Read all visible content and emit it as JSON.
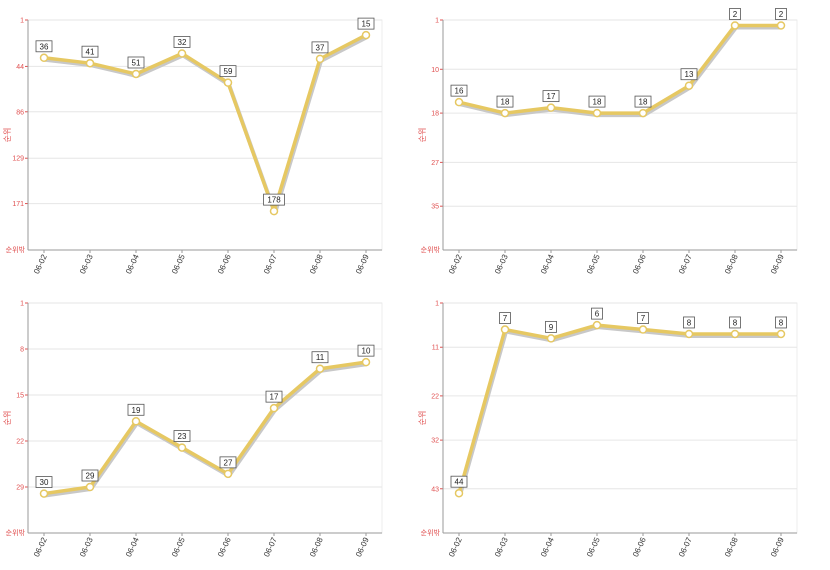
{
  "chart_data": [
    {
      "type": "line",
      "categories": [
        "06-02",
        "06-03",
        "06-04",
        "06-05",
        "06-06",
        "06-07",
        "06-08",
        "06-09"
      ],
      "values": [
        36,
        41,
        51,
        32,
        59,
        178,
        37,
        15
      ],
      "ylabel": "순위",
      "yaxis_min_label": "순위밖",
      "ylim": [
        1,
        214
      ],
      "y_reversed": true,
      "yticks": [
        1,
        44,
        86,
        129,
        171
      ],
      "grid": true,
      "color": "#e6c862"
    },
    {
      "type": "line",
      "categories": [
        "06-02",
        "06-03",
        "06-04",
        "06-05",
        "06-06",
        "06-07",
        "06-08",
        "06-09"
      ],
      "values": [
        16,
        18,
        17,
        18,
        18,
        13,
        2,
        2
      ],
      "ylabel": "순위",
      "yaxis_min_label": "순위밖",
      "ylim": [
        1,
        43
      ],
      "y_reversed": true,
      "yticks": [
        1,
        10,
        18,
        27,
        35
      ],
      "grid": true,
      "color": "#e6c862"
    },
    {
      "type": "line",
      "categories": [
        "06-02",
        "06-03",
        "06-04",
        "06-05",
        "06-06",
        "06-07",
        "06-08",
        "06-09"
      ],
      "values": [
        30,
        29,
        19,
        23,
        27,
        17,
        11,
        10
      ],
      "ylabel": "순위",
      "yaxis_min_label": "순위밖",
      "ylim": [
        1,
        36
      ],
      "y_reversed": true,
      "yticks": [
        1,
        8,
        15,
        22,
        29
      ],
      "grid": true,
      "color": "#e6c862"
    },
    {
      "type": "line",
      "categories": [
        "06-02",
        "06-03",
        "06-04",
        "06-05",
        "06-06",
        "06-07",
        "06-08",
        "06-09"
      ],
      "values": [
        44,
        7,
        9,
        6,
        7,
        8,
        8,
        8
      ],
      "ylabel": "순위",
      "yaxis_min_label": "순위밖",
      "ylim": [
        1,
        53
      ],
      "y_reversed": true,
      "yticks": [
        1,
        11,
        22,
        32,
        43
      ],
      "grid": true,
      "color": "#e6c862"
    }
  ]
}
